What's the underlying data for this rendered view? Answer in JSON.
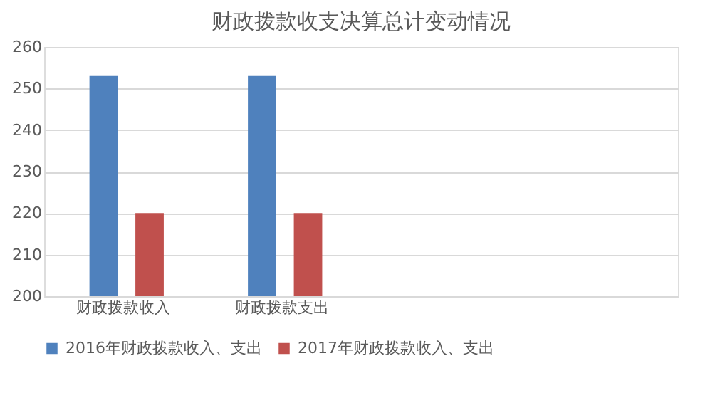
{
  "chart_data": {
    "type": "bar",
    "title": "财政拨款收支决算总计变动情况",
    "categories": [
      "财政拨款收入",
      "财政拨款支出",
      null,
      null
    ],
    "series": [
      {
        "name": "2016年财政拨款收入、支出",
        "color": "#4f81bd",
        "values": [
          253,
          253,
          null,
          null
        ]
      },
      {
        "name": "2017年财政拨款收入、支出",
        "color": "#c0504d",
        "values": [
          220,
          220,
          null,
          null
        ]
      }
    ],
    "ylim": [
      200,
      260
    ],
    "yticks": [
      200,
      210,
      220,
      230,
      240,
      250,
      260
    ],
    "grid": "y",
    "legend": "bottom"
  }
}
